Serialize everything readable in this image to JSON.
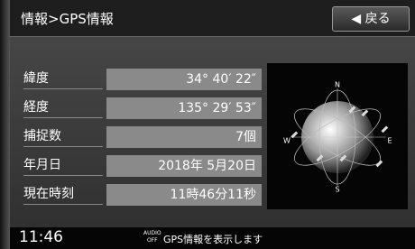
{
  "header": {
    "title": "情報>GPS情報",
    "back_button": "◀ 戻る"
  },
  "rows": [
    {
      "label": "緯度",
      "value": "34° 40′ 22″"
    },
    {
      "label": "経度",
      "value": "135° 29′ 53″"
    },
    {
      "label": "捕捉数",
      "value": "7個"
    },
    {
      "label": "年月日",
      "value": "2018年 5月20日"
    },
    {
      "label": "現在時刻",
      "value": "11時46分11秒"
    }
  ],
  "globe": {
    "north": "N",
    "east": "E",
    "south": "S",
    "west": "W"
  },
  "footer": {
    "time": "11:46",
    "audio": "AUDIO",
    "audio_state": "OFF",
    "message": "GPS情報を表示します"
  }
}
